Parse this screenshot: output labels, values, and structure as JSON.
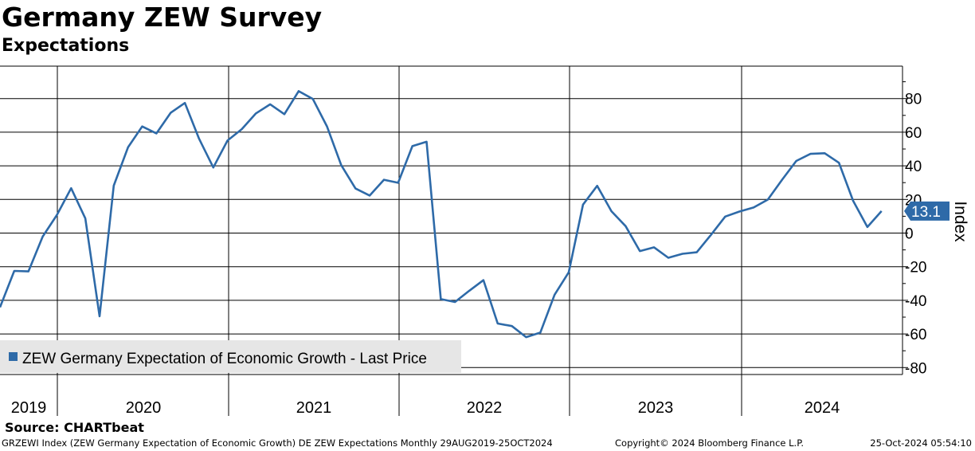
{
  "header": {
    "title": "Germany ZEW Survey",
    "subtitle": "Expectations"
  },
  "source": "Source: CHARTbeat",
  "footer": {
    "left": "GRZEWI Index (ZEW Germany Expectation of Economic Growth) DE ZEW Expectations  Monthly 29AUG2019-25OCT2024",
    "middle": "Copyright© 2024 Bloomberg Finance L.P.",
    "right": "25-Oct-2024 05:54:10"
  },
  "colors": {
    "series": "#2e6aa8",
    "grid": "#000000",
    "legend_bg": "#e6e6e6",
    "badge": "#2e6aa8"
  },
  "chart_data": {
    "type": "line",
    "ylabel": "Index",
    "y_ticks": [
      -80,
      -60,
      -40,
      -20,
      0,
      20,
      40,
      60,
      80
    ],
    "ylim": [
      -85,
      98
    ],
    "y_axis_position": "right",
    "x_year_labels": [
      "2019",
      "2020",
      "2021",
      "2022",
      "2023",
      "2024"
    ],
    "grid": true,
    "legend": {
      "placement": "bottom-left",
      "entries": [
        "ZEW Germany Expectation of Economic Growth - Last Price"
      ]
    },
    "last_value_label": "13.1",
    "series": [
      {
        "name": "ZEW Germany Expectation of Economic Growth - Last Price",
        "x": [
          "2019-08",
          "2019-09",
          "2019-10",
          "2019-11",
          "2019-12",
          "2020-01",
          "2020-02",
          "2020-03",
          "2020-04",
          "2020-05",
          "2020-06",
          "2020-07",
          "2020-08",
          "2020-09",
          "2020-10",
          "2020-11",
          "2020-12",
          "2021-01",
          "2021-02",
          "2021-03",
          "2021-04",
          "2021-05",
          "2021-06",
          "2021-07",
          "2021-08",
          "2021-09",
          "2021-10",
          "2021-11",
          "2021-12",
          "2022-01",
          "2022-02",
          "2022-03",
          "2022-04",
          "2022-05",
          "2022-06",
          "2022-07",
          "2022-08",
          "2022-09",
          "2022-10",
          "2022-11",
          "2022-12",
          "2023-01",
          "2023-02",
          "2023-03",
          "2023-04",
          "2023-05",
          "2023-06",
          "2023-07",
          "2023-08",
          "2023-09",
          "2023-10",
          "2023-11",
          "2023-12",
          "2024-01",
          "2024-02",
          "2024-03",
          "2024-04",
          "2024-05",
          "2024-06",
          "2024-07",
          "2024-08",
          "2024-09",
          "2024-10"
        ],
        "values": [
          -44.1,
          -22.5,
          -22.8,
          -2.1,
          10.7,
          26.7,
          8.7,
          -49.5,
          28.2,
          51.0,
          63.4,
          59.3,
          71.5,
          77.4,
          56.1,
          39.0,
          55.0,
          61.8,
          71.2,
          76.6,
          70.7,
          84.4,
          79.8,
          63.3,
          40.4,
          26.5,
          22.3,
          31.7,
          29.9,
          51.7,
          54.3,
          -39.3,
          -41.0,
          -34.3,
          -28.0,
          -53.8,
          -55.3,
          -61.9,
          -59.2,
          -36.7,
          -23.3,
          16.9,
          28.1,
          13.0,
          4.1,
          -10.7,
          -8.5,
          -14.7,
          -12.3,
          -11.4,
          -1.1,
          9.8,
          12.8,
          15.2,
          19.9,
          31.7,
          42.9,
          47.1,
          47.5,
          41.8,
          19.2,
          3.6,
          13.1
        ]
      }
    ]
  }
}
